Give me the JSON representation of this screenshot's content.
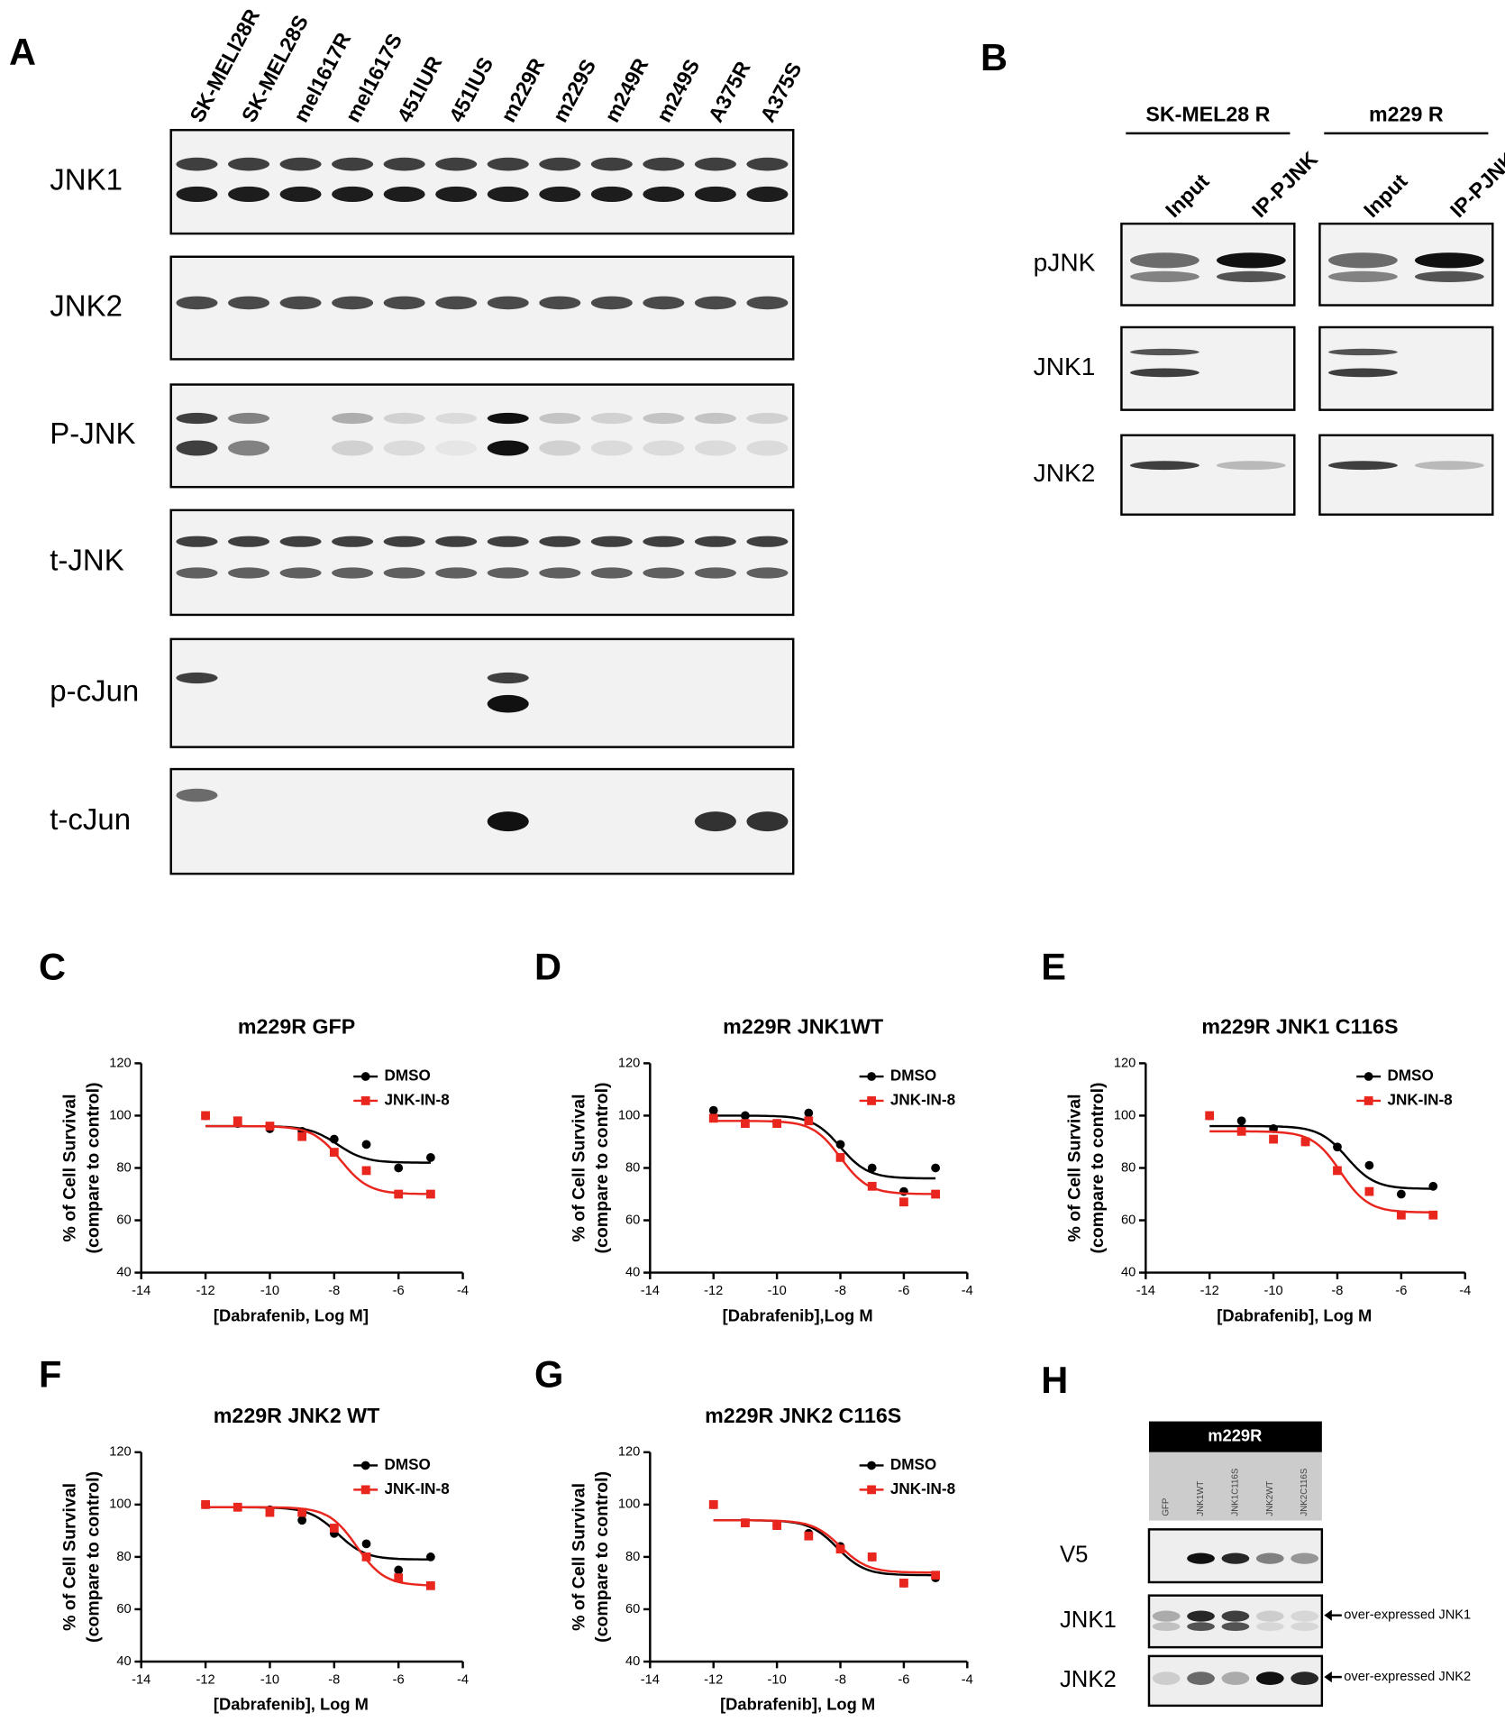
{
  "panel_a": {
    "letter": "A",
    "lanes": [
      "SK-MELl28R",
      "SK-MEL28S",
      "mel1617R",
      "mel1617S",
      "451lUR",
      "451lUS",
      "m229R",
      "m229S",
      "m249R",
      "m249S",
      "A375R",
      "A375S"
    ],
    "rows": [
      "JNK1",
      "JNK2",
      "P-JNK",
      "t-JNK",
      "p-cJun",
      "t-cJun"
    ]
  },
  "panel_b": {
    "letter": "B",
    "groups": [
      {
        "label": "SK-MEL28 R",
        "lanes": [
          "Input",
          "IP-PJNK"
        ]
      },
      {
        "label": "m229 R",
        "lanes": [
          "Input",
          "IP-PJNK"
        ]
      }
    ],
    "rows": [
      "pJNK",
      "JNK1",
      "JNK2"
    ]
  },
  "panel_h": {
    "letter": "H",
    "header": "m229R",
    "lanes": [
      "GFP",
      "JNK1WT",
      "JNK1C116S",
      "JNK2WT",
      "JNK2C116S"
    ],
    "rows": [
      "V5",
      "JNK1",
      "JNK2"
    ],
    "arrows": [
      "over-expressed JNK1",
      "over-expressed JNK2"
    ]
  },
  "chart_data": [
    {
      "type": "line",
      "panel": "C",
      "title": "m229R GFP",
      "xlabel": "[Dabrafenib, Log M]",
      "ylabel": [
        "% of Cell Survival",
        "(compare to control)"
      ],
      "x": [
        -12,
        -11,
        -10,
        -9,
        -8,
        -7,
        -6,
        -5
      ],
      "xlim": [
        -14,
        -4
      ],
      "xticks": [
        -14,
        -12,
        -10,
        -8,
        -6,
        -4
      ],
      "ylim": [
        40,
        120
      ],
      "yticks": [
        40,
        60,
        80,
        100,
        120
      ],
      "series": [
        {
          "name": "DMSO",
          "color": "#000000",
          "values": [
            100,
            97,
            95,
            94,
            91,
            89,
            80,
            84
          ],
          "fit": {
            "top": 96,
            "bottom": 82,
            "logec50": -7.9
          }
        },
        {
          "name": "JNK-IN-8",
          "color": "#e8261e",
          "values": [
            100,
            98,
            96,
            92,
            86,
            79,
            70,
            70
          ],
          "fit": {
            "top": 96,
            "bottom": 70,
            "logec50": -7.8
          }
        }
      ]
    },
    {
      "type": "line",
      "panel": "D",
      "title": "m229R JNK1WT",
      "xlabel": "[Dabrafenib],Log M",
      "ylabel": [
        "% of Cell Survival",
        "(compare to control)"
      ],
      "x": [
        -12,
        -11,
        -10,
        -9,
        -8,
        -7,
        -6,
        -5
      ],
      "xlim": [
        -14,
        -4
      ],
      "xticks": [
        -14,
        -12,
        -10,
        -8,
        -6,
        -4
      ],
      "ylim": [
        40,
        120
      ],
      "yticks": [
        40,
        60,
        80,
        100,
        120
      ],
      "series": [
        {
          "name": "DMSO",
          "color": "#000000",
          "values": [
            102,
            100,
            97,
            101,
            89,
            80,
            71,
            80
          ],
          "fit": {
            "top": 100,
            "bottom": 76,
            "logec50": -8
          }
        },
        {
          "name": "JNK-IN-8",
          "color": "#e8261e",
          "values": [
            99,
            97,
            97,
            98,
            84,
            73,
            67,
            70
          ],
          "fit": {
            "top": 98,
            "bottom": 70,
            "logec50": -8
          }
        }
      ]
    },
    {
      "type": "line",
      "panel": "E",
      "title": "m229R JNK1 C116S",
      "xlabel": "[Dabrafenib], Log M",
      "ylabel": [
        "% of Cell Survival",
        "(compare to control)"
      ],
      "x": [
        -12,
        -11,
        -10,
        -9,
        -8,
        -7,
        -6,
        -5
      ],
      "xlim": [
        -14,
        -4
      ],
      "xticks": [
        -14,
        -12,
        -10,
        -8,
        -6,
        -4
      ],
      "ylim": [
        40,
        120
      ],
      "yticks": [
        40,
        60,
        80,
        100,
        120
      ],
      "series": [
        {
          "name": "DMSO",
          "color": "#000000",
          "values": [
            100,
            98,
            95,
            90,
            88,
            81,
            70,
            73
          ],
          "fit": {
            "top": 96,
            "bottom": 72,
            "logec50": -7.7
          }
        },
        {
          "name": "JNK-IN-8",
          "color": "#e8261e",
          "values": [
            100,
            94,
            91,
            90,
            79,
            71,
            62,
            62
          ],
          "fit": {
            "top": 94,
            "bottom": 63,
            "logec50": -7.9
          }
        }
      ]
    },
    {
      "type": "line",
      "panel": "F",
      "title": "m229R JNK2 WT",
      "xlabel": "[Dabrafenib], Log M",
      "ylabel": [
        "% of Cell Survival",
        "(compare to control)"
      ],
      "x": [
        -12,
        -11,
        -10,
        -9,
        -8,
        -7,
        -6,
        -5
      ],
      "xlim": [
        -14,
        -4
      ],
      "xticks": [
        -14,
        -12,
        -10,
        -8,
        -6,
        -4
      ],
      "ylim": [
        40,
        120
      ],
      "yticks": [
        40,
        60,
        80,
        100,
        120
      ],
      "series": [
        {
          "name": "DMSO",
          "color": "#000000",
          "values": [
            100,
            99,
            98,
            94,
            89,
            85,
            75,
            80
          ],
          "fit": {
            "top": 99,
            "bottom": 79,
            "logec50": -7.9
          }
        },
        {
          "name": "JNK-IN-8",
          "color": "#e8261e",
          "values": [
            100,
            99,
            97,
            97,
            91,
            80,
            72,
            69
          ],
          "fit": {
            "top": 99,
            "bottom": 69,
            "logec50": -7.3
          }
        }
      ]
    },
    {
      "type": "line",
      "panel": "G",
      "title": "m229R JNK2 C116S",
      "xlabel": "[Dabrafenib], Log M",
      "ylabel": [
        "% of Cell Survival",
        "(compare to control)"
      ],
      "x": [
        -12,
        -11,
        -10,
        -9,
        -8,
        -7,
        -6,
        -5
      ],
      "xlim": [
        -14,
        -4
      ],
      "xticks": [
        -14,
        -12,
        -10,
        -8,
        -6,
        -4
      ],
      "ylim": [
        40,
        120
      ],
      "yticks": [
        40,
        60,
        80,
        100,
        120
      ],
      "series": [
        {
          "name": "DMSO",
          "color": "#000000",
          "values": [
            100,
            93,
            92,
            89,
            84,
            80,
            70,
            72
          ],
          "fit": {
            "top": 94,
            "bottom": 73,
            "logec50": -8.1
          }
        },
        {
          "name": "JNK-IN-8",
          "color": "#e8261e",
          "values": [
            100,
            93,
            92,
            88,
            83,
            80,
            70,
            73
          ],
          "fit": {
            "top": 94,
            "bottom": 74,
            "logec50": -8
          }
        }
      ]
    }
  ]
}
